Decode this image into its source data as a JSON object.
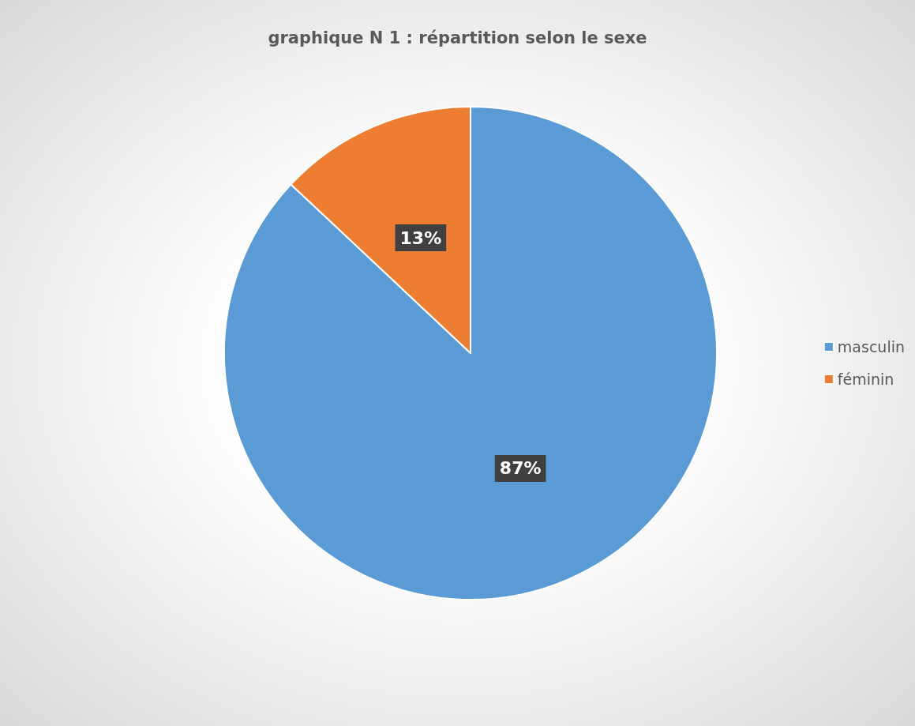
{
  "chart_data": {
    "type": "pie",
    "title": "graphique N 1 : répartition selon le sexe",
    "categories": [
      "masculin",
      "féminin"
    ],
    "values": [
      87,
      13
    ],
    "colors": [
      "#5b9bd5",
      "#ed7d31"
    ],
    "value_labels": [
      "87%",
      "13%"
    ],
    "legend": "right"
  }
}
